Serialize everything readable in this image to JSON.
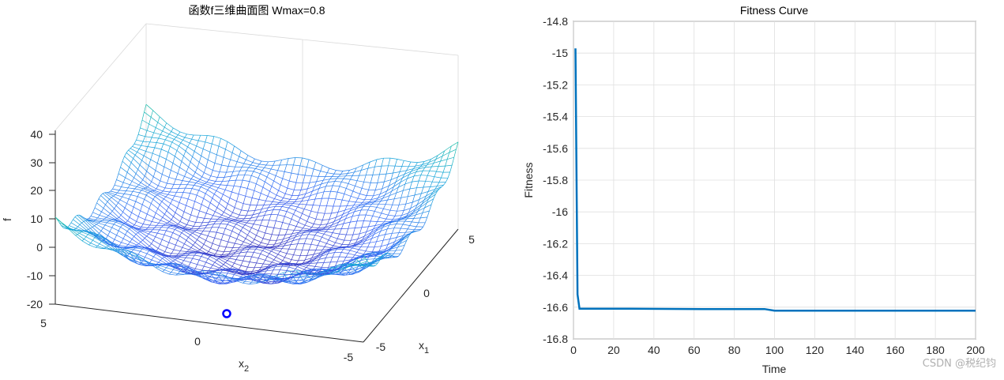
{
  "chart_data": [
    {
      "type": "surface",
      "title": "函数f三维曲面图 Wmax=0.8",
      "zlabel": "f",
      "xlabel": "x",
      "xlabel_sub": "1",
      "ylabel": "x",
      "ylabel_sub": "2",
      "zticks": [
        "40",
        "30",
        "20",
        "10",
        "0",
        "-10",
        "-20"
      ],
      "x1ticks": [
        "5",
        "0",
        "-5"
      ],
      "x2ticks": [
        "5",
        "0",
        "-5"
      ],
      "zlim": [
        -20,
        40
      ],
      "x1lim": [
        -5,
        5
      ],
      "x2lim": [
        -5,
        5
      ],
      "colormap": "parula",
      "marker": {
        "shape": "circle",
        "color": "#0000ff"
      }
    },
    {
      "type": "line",
      "title": "Fitness Curve",
      "xlabel": "Time",
      "ylabel": "Fitness",
      "xlim": [
        0,
        200
      ],
      "ylim": [
        -16.8,
        -14.8
      ],
      "xticks": [
        "0",
        "20",
        "40",
        "60",
        "80",
        "100",
        "120",
        "140",
        "160",
        "180",
        "200"
      ],
      "yticks": [
        "-14.8",
        "-15",
        "-15.2",
        "-15.4",
        "-15.6",
        "-15.8",
        "-16",
        "-16.2",
        "-16.4",
        "-16.6",
        "-16.8"
      ],
      "grid": true,
      "series": [
        {
          "color": "#0072bd",
          "x": [
            1,
            2,
            3,
            4,
            10,
            28,
            64,
            95,
            100,
            200
          ],
          "y": [
            -14.97,
            -16.52,
            -16.61,
            -16.61,
            -16.61,
            -16.61,
            -16.612,
            -16.612,
            -16.622,
            -16.622
          ]
        }
      ]
    }
  ],
  "watermark": "CSDN @税纪钧"
}
